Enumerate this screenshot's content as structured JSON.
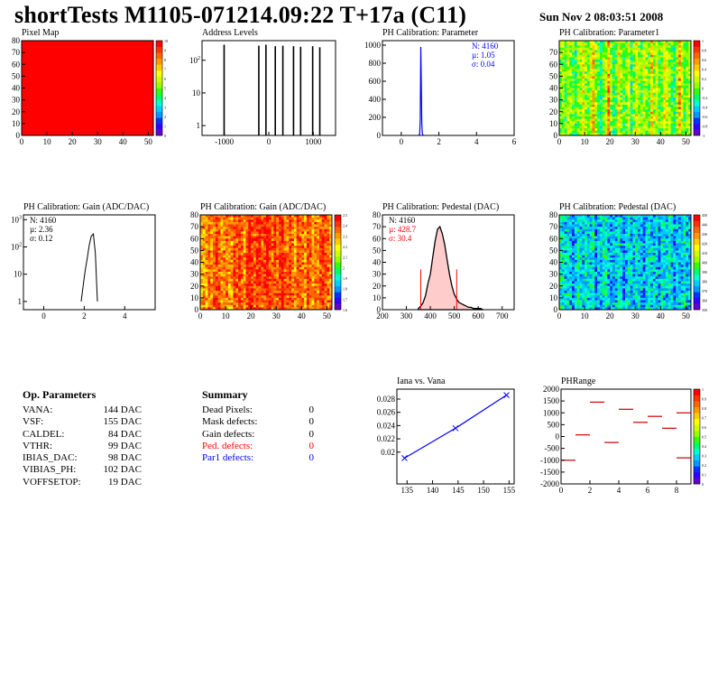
{
  "page": {
    "title": "shortTests M1105-071214.09:22 T+17a (C11)",
    "date": "Sun Nov  2 08:03:51 2008"
  },
  "colors": {
    "red": "#ff0000",
    "blue": "#0000ff",
    "palette": [
      "#6600cc",
      "#3300ff",
      "#0033ff",
      "#0099ff",
      "#00ccff",
      "#00ffcc",
      "#00ff66",
      "#33ff00",
      "#99ff00",
      "#ccff00",
      "#ffff00",
      "#ffcc00",
      "#ff9900",
      "#ff6600",
      "#ff3300",
      "#ff0000"
    ]
  },
  "op_params": {
    "heading": "Op. Parameters",
    "rows": [
      {
        "name": "VANA:",
        "value": "144 DAC"
      },
      {
        "name": "VSF:",
        "value": "155 DAC"
      },
      {
        "name": "CALDEL:",
        "value": "84 DAC"
      },
      {
        "name": "VTHR:",
        "value": "99 DAC"
      },
      {
        "name": "IBIAS_DAC:",
        "value": "98 DAC"
      },
      {
        "name": "VIBIAS_PH:",
        "value": "102 DAC"
      },
      {
        "name": "VOFFSETOP:",
        "value": "19 DAC"
      }
    ]
  },
  "summary": {
    "heading": "Summary",
    "rows": [
      {
        "name": "Dead Pixels:",
        "value": "0",
        "color": "#000000"
      },
      {
        "name": "Mask defects:",
        "value": "0",
        "color": "#000000"
      },
      {
        "name": "Gain defects:",
        "value": "0",
        "color": "#000000"
      },
      {
        "name": "Ped. defects:",
        "value": "0",
        "color": "#ff0000"
      },
      {
        "name": "Par1 defects:",
        "value": "0",
        "color": "#0000ff"
      }
    ]
  },
  "chart_data": [
    {
      "id": "pixel-map",
      "type": "heatmap",
      "title": "Pixel Map",
      "xlim": [
        0,
        52
      ],
      "ylim": [
        0,
        80
      ],
      "xticks": [
        "0",
        "10",
        "20",
        "30",
        "40",
        "50"
      ],
      "yticks": [
        "0",
        "10",
        "20",
        "30",
        "40",
        "50",
        "60",
        "70",
        "80"
      ],
      "z_uniform": 10,
      "zticks": [
        "0",
        "1",
        "2",
        "3",
        "4",
        "5",
        "6",
        "7",
        "8",
        "9",
        "10"
      ]
    },
    {
      "id": "address-levels",
      "type": "bar",
      "title": "Address Levels",
      "xlim": [
        -1500,
        1500
      ],
      "ylog": true,
      "ylim": [
        0.5,
        400
      ],
      "xticks": [
        "-1000",
        "0",
        "1000"
      ],
      "yticks": [
        "1",
        "10",
        "10^2"
      ],
      "peaks": [
        {
          "x": -1000,
          "y": 300
        },
        {
          "x": -220,
          "y": 280
        },
        {
          "x": -60,
          "y": 300
        },
        {
          "x": 150,
          "y": 270
        },
        {
          "x": 320,
          "y": 280
        },
        {
          "x": 560,
          "y": 270
        },
        {
          "x": 720,
          "y": 260
        },
        {
          "x": 990,
          "y": 270
        },
        {
          "x": 1150,
          "y": 250
        }
      ]
    },
    {
      "id": "ph-cal-parameter",
      "type": "line",
      "title": "PH Calibration: Parameter",
      "xlim": [
        -1,
        6
      ],
      "ylim": [
        0,
        1050
      ],
      "xticks": [
        "0",
        "2",
        "4",
        "6"
      ],
      "yticks": [
        "0",
        "200",
        "400",
        "600",
        "800",
        "1000"
      ],
      "stats": [
        "N: 4160",
        "µ: 1.05",
        "σ: 0.04"
      ],
      "x": [
        0.94,
        0.98,
        1.01,
        1.04,
        1.06,
        1.09,
        1.12,
        1.16
      ],
      "y": [
        0,
        20,
        180,
        980,
        640,
        140,
        20,
        0
      ]
    },
    {
      "id": "ph-cal-parameter1",
      "type": "heatmap",
      "title": "PH Calibration: Parameter1",
      "xlim": [
        0,
        52
      ],
      "ylim": [
        0,
        80
      ],
      "xticks": [
        "0",
        "10",
        "20",
        "30",
        "40",
        "50"
      ],
      "yticks": [
        "0",
        "10",
        "20",
        "30",
        "40",
        "50",
        "60",
        "70"
      ],
      "zticks": [
        "-1",
        "-0.8",
        "-0.6",
        "-0.4",
        "-0.2",
        "0",
        "0.2",
        "0.4",
        "0.6",
        "0.8",
        "1"
      ],
      "column_levels": [
        8,
        8,
        7,
        9,
        8,
        7,
        6,
        8,
        8,
        10,
        8,
        7,
        9,
        11,
        8,
        7,
        6,
        8,
        9,
        12,
        8,
        6,
        7,
        10,
        8,
        7,
        8,
        9,
        6,
        8,
        10,
        8,
        7,
        9,
        8,
        7,
        11,
        8,
        9,
        7,
        8,
        10,
        9,
        8,
        7,
        6,
        8,
        12,
        9,
        7,
        8,
        8
      ]
    },
    {
      "id": "ph-cal-gain",
      "type": "line",
      "title": "PH Calibration: Gain (ADC/DAC)",
      "xlim": [
        -1,
        5.5
      ],
      "ylog": true,
      "ylim": [
        0.5,
        1500
      ],
      "xticks": [
        "0",
        "2",
        "4"
      ],
      "yticks": [
        "1",
        "10",
        "10^2",
        "10^3"
      ],
      "stats": [
        "N: 4160",
        "µ: 2.36",
        "σ: 0.12"
      ],
      "x": [
        1.85,
        1.95,
        2.05,
        2.15,
        2.25,
        2.35,
        2.45,
        2.55,
        2.65
      ],
      "y": [
        1,
        4,
        14,
        40,
        120,
        250,
        300,
        60,
        1
      ]
    },
    {
      "id": "ph-cal-gain-map",
      "type": "heatmap",
      "title": "PH Calibration: Gain (ADC/DAC)",
      "xlim": [
        0,
        52
      ],
      "ylim": [
        0,
        80
      ],
      "xticks": [
        "0",
        "10",
        "20",
        "30",
        "40",
        "50"
      ],
      "yticks": [
        "0",
        "10",
        "20",
        "30",
        "40",
        "50",
        "60",
        "70",
        "80"
      ],
      "zticks": [
        "1.6",
        "1.7",
        "1.8",
        "1.9",
        "2",
        "2.1",
        "2.2",
        "2.3",
        "2.4",
        "2.5"
      ],
      "column_levels": [
        11,
        12,
        12,
        13,
        12,
        13,
        14,
        13,
        12,
        13,
        13,
        12,
        12,
        14,
        13,
        14,
        13,
        12,
        14,
        15,
        14,
        13,
        14,
        14,
        13,
        14,
        15,
        14,
        13,
        14,
        13,
        14,
        15,
        13,
        13,
        14,
        13,
        12,
        14,
        13,
        13,
        12,
        14,
        13,
        12,
        13,
        12,
        13,
        14,
        13,
        13,
        12
      ]
    },
    {
      "id": "ph-cal-pedestal",
      "type": "line",
      "title": "PH Calibration: Pedestal (DAC)",
      "xlim": [
        200,
        750
      ],
      "ylim": [
        0,
        80
      ],
      "xticks": [
        "200",
        "300",
        "400",
        "500",
        "600",
        "700"
      ],
      "yticks": [
        "0",
        "10",
        "20",
        "30",
        "40",
        "50",
        "60",
        "70",
        "80"
      ],
      "stats": [
        "N: 4160",
        "µ: 428.7",
        "σ: 30.4"
      ],
      "cut_lines": [
        360,
        510
      ],
      "x": [
        350,
        360,
        370,
        380,
        390,
        400,
        410,
        420,
        430,
        440,
        450,
        460,
        470,
        480,
        490,
        500,
        510,
        520,
        530,
        540,
        550,
        560,
        570,
        580,
        590,
        600,
        610,
        620
      ],
      "y": [
        1,
        3,
        6,
        12,
        22,
        30,
        44,
        58,
        68,
        70,
        64,
        55,
        42,
        30,
        20,
        13,
        9,
        6,
        5,
        4,
        3,
        2,
        2,
        1,
        1,
        1,
        1,
        0
      ]
    },
    {
      "id": "ph-cal-pedestal-map",
      "type": "heatmap",
      "title": "PH Calibration: Pedestal (DAC)",
      "xlim": [
        0,
        52
      ],
      "ylim": [
        0,
        80
      ],
      "xticks": [
        "0",
        "10",
        "20",
        "30",
        "40",
        "50"
      ],
      "yticks": [
        "0",
        "10",
        "20",
        "30",
        "40",
        "50",
        "60",
        "70",
        "80"
      ],
      "zticks": [
        "350",
        "360",
        "370",
        "380",
        "390",
        "400",
        "410",
        "420",
        "430",
        "440",
        "450"
      ],
      "column_levels": [
        5,
        5,
        4,
        5,
        4,
        3,
        4,
        5,
        4,
        4,
        5,
        4,
        4,
        5,
        3,
        4,
        4,
        5,
        5,
        4,
        3,
        4,
        4,
        5,
        4,
        3,
        4,
        5,
        4,
        4,
        5,
        4,
        4,
        3,
        4,
        5,
        4,
        4,
        4,
        3,
        5,
        4,
        4,
        5,
        4,
        3,
        4,
        4,
        4,
        5,
        4,
        4
      ]
    },
    {
      "id": "iana-vs-vana",
      "type": "line",
      "title": "Iana vs. Vana",
      "xlim": [
        133,
        156
      ],
      "ylim": [
        0.0152,
        0.0295
      ],
      "xticks": [
        "135",
        "140",
        "145",
        "150",
        "155"
      ],
      "yticks": [
        "0.02",
        "0.022",
        "0.024",
        "0.026",
        "0.028"
      ],
      "x": [
        134.5,
        144.5,
        154.5
      ],
      "y": [
        0.0191,
        0.0236,
        0.0286
      ]
    },
    {
      "id": "phrange",
      "type": "scatter",
      "title": "PHRange",
      "xlim": [
        0,
        9
      ],
      "ylim": [
        -2000,
        2000
      ],
      "xticks": [
        "0",
        "2",
        "4",
        "6",
        "8"
      ],
      "yticks": [
        "-2000",
        "-1500",
        "-1000",
        "-500",
        "0",
        "500",
        "1000",
        "1500",
        "2000"
      ],
      "zticks": [
        "0",
        "0.1",
        "0.2",
        "0.3",
        "0.4",
        "0.5",
        "0.6",
        "0.7",
        "0.8",
        "0.9",
        "1"
      ],
      "segments": [
        {
          "x0": 0,
          "x1": 1,
          "y": -1000
        },
        {
          "x0": 1,
          "x1": 2,
          "y": 70
        },
        {
          "x0": 2,
          "x1": 3,
          "y": 1450
        },
        {
          "x0": 3,
          "x1": 4,
          "y": -250
        },
        {
          "x0": 4,
          "x1": 5,
          "y": 1150
        },
        {
          "x0": 5,
          "x1": 6,
          "y": 600
        },
        {
          "x0": 6,
          "x1": 7,
          "y": 850
        },
        {
          "x0": 7,
          "x1": 8,
          "y": 350
        },
        {
          "x0": 8,
          "x1": 9,
          "y": 1000
        },
        {
          "x0": 8,
          "x1": 9,
          "y": -900
        }
      ]
    }
  ]
}
